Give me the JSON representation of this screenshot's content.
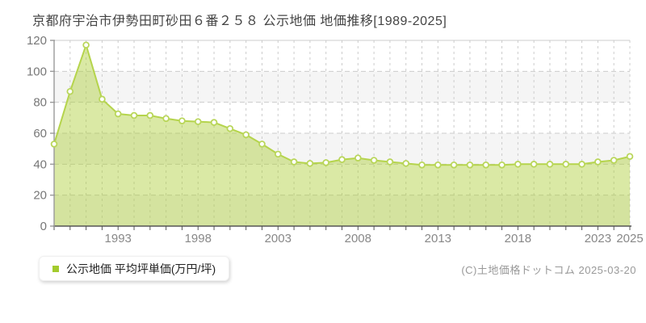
{
  "title": "京都府宇治市伊勢田町砂田６番２５８ 公示地価 地価推移[1989-2025]",
  "legend": {
    "label": "公示地価 平均坪単価(万円/坪)",
    "marker_color": "#a3cb2d"
  },
  "copyright": "(C)土地価格ドットコム 2025-03-20",
  "chart_data": {
    "type": "area",
    "title": "京都府宇治市伊勢田町砂田６番２５８ 公示地価 地価推移[1989-2025]",
    "xlabel": "",
    "ylabel": "平均坪単価(万円/坪)",
    "x": [
      1989,
      1990,
      1991,
      1992,
      1993,
      1994,
      1995,
      1996,
      1997,
      1998,
      1999,
      2000,
      2001,
      2002,
      2003,
      2004,
      2005,
      2006,
      2007,
      2008,
      2009,
      2010,
      2011,
      2012,
      2013,
      2014,
      2015,
      2016,
      2017,
      2018,
      2019,
      2020,
      2021,
      2022,
      2023,
      2024,
      2025
    ],
    "series": [
      {
        "name": "公示地価 平均坪単価(万円/坪)",
        "values": [
          53,
          87,
          117,
          82,
          72.5,
          71.5,
          71.5,
          69.5,
          68,
          67.5,
          67,
          63,
          59,
          53,
          46.5,
          41.5,
          40.5,
          41,
          43,
          44,
          42.5,
          41.5,
          40.5,
          39.5,
          39.5,
          39.5,
          39.5,
          39.5,
          39.5,
          40,
          40,
          40,
          40,
          40,
          41.5,
          42.5,
          45
        ]
      }
    ],
    "ylim": [
      0,
      120
    ],
    "y_ticks": [
      0,
      20,
      40,
      60,
      80,
      100,
      120
    ],
    "x_tick_labels": [
      1993,
      1998,
      2003,
      2008,
      2013,
      2018,
      2023,
      2025
    ],
    "grid": true,
    "legend_position": "bottom-left",
    "colors": {
      "line": "#b5d44c",
      "fill": "rgba(173,206,56,0.45)",
      "marker_fill": "#ffffff",
      "marker_stroke": "#b9d65a",
      "grid": "#cccccc",
      "band_alt": "#f5f5f5",
      "axis_x": "#555555",
      "axis_y": "#999999",
      "tick_label": "#888888"
    }
  }
}
